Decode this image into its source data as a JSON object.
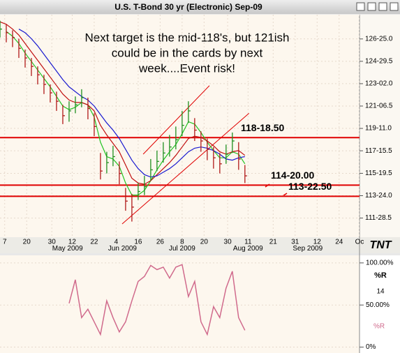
{
  "logo": "TNT",
  "chart_data": [
    {
      "type": "ohlc",
      "title": "U.S. T-Bond 30 yr (Electronic) Sep-09",
      "annotation": [
        "Next target is the mid-118's, but 121ish",
        "could be in the cards by next",
        "week....Event risk!"
      ],
      "x": [
        0,
        2,
        4,
        6,
        8,
        10,
        12,
        14,
        16,
        18,
        20,
        22,
        24,
        26,
        28,
        30,
        32,
        34,
        36,
        38,
        40,
        42,
        44,
        46,
        48,
        50,
        52,
        54,
        56,
        58,
        60,
        62,
        64,
        66,
        68,
        70,
        72,
        74,
        76,
        78
      ],
      "high": [
        128.3,
        128.0,
        127.5,
        126.8,
        125.9,
        125.2,
        124.5,
        123.8,
        123.0,
        122.4,
        121.3,
        121.6,
        122.0,
        122.6,
        121.9,
        120.6,
        117.3,
        117.4,
        117.9,
        116.6,
        114.4,
        113.9,
        114.8,
        115.4,
        116.8,
        117.5,
        118.2,
        118.8,
        119.5,
        120.8,
        121.6,
        120.2,
        119.1,
        118.5,
        117.8,
        117.3,
        118.0,
        119.0,
        118.2,
        116.3
      ],
      "low": [
        126.9,
        126.5,
        126.1,
        125.2,
        124.4,
        123.7,
        123.0,
        122.2,
        121.5,
        120.8,
        119.7,
        119.9,
        120.6,
        121.1,
        120.1,
        118.7,
        115.1,
        115.6,
        116.2,
        114.7,
        112.5,
        111.6,
        113.4,
        113.8,
        115.0,
        115.8,
        116.5,
        117.0,
        117.6,
        118.7,
        119.8,
        118.3,
        117.4,
        116.7,
        116.0,
        115.6,
        116.4,
        117.3,
        115.9,
        114.8
      ],
      "close": [
        127.6,
        127.3,
        126.9,
        126.0,
        125.2,
        124.5,
        123.8,
        123.0,
        122.3,
        121.6,
        120.4,
        120.8,
        121.3,
        121.9,
        121.0,
        119.5,
        115.8,
        116.5,
        117.0,
        115.6,
        113.3,
        112.8,
        114.1,
        114.5,
        115.9,
        116.6,
        117.3,
        117.8,
        118.4,
        119.6,
        120.8,
        119.2,
        118.3,
        117.6,
        116.9,
        116.4,
        117.2,
        118.3,
        116.8,
        115.4
      ],
      "up_color": "#1f8f1f",
      "down_color": "#b01818",
      "moving_averages": [
        {
          "color": "#22c422",
          "values": [
            null,
            127.4,
            127.0,
            126.4,
            125.6,
            124.9,
            124.2,
            123.5,
            122.8,
            122.0,
            121.2,
            120.9,
            121.1,
            121.5,
            121.3,
            120.3,
            118.2,
            117.0,
            116.8,
            116.2,
            114.8,
            113.8,
            113.8,
            114.2,
            115.0,
            115.9,
            116.7,
            117.4,
            118.0,
            118.9,
            119.9,
            119.7,
            119.0,
            118.2,
            117.5,
            116.9,
            116.9,
            117.4,
            117.2,
            116.4
          ]
        },
        {
          "color": "#c01010",
          "values": [
            128.2,
            128.0,
            127.6,
            127.1,
            126.4,
            125.7,
            125.0,
            124.3,
            123.6,
            122.9,
            122.2,
            121.7,
            121.5,
            121.5,
            121.3,
            120.8,
            119.6,
            118.8,
            118.1,
            117.4,
            116.3,
            115.2,
            114.8,
            114.7,
            115.0,
            115.5,
            116.0,
            116.5,
            117.1,
            117.8,
            118.5,
            118.7,
            118.6,
            118.3,
            117.9,
            117.4,
            117.2,
            117.4,
            117.5,
            117.1
          ]
        },
        {
          "color": "#1a1ad0",
          "values": [
            null,
            null,
            null,
            127.6,
            127.3,
            126.8,
            126.2,
            125.5,
            124.8,
            124.1,
            123.4,
            122.8,
            122.4,
            122.0,
            121.7,
            121.2,
            120.5,
            119.8,
            119.2,
            118.5,
            117.6,
            116.7,
            116.0,
            115.5,
            115.3,
            115.4,
            115.7,
            116.0,
            116.4,
            116.9,
            117.4,
            117.7,
            117.8,
            117.7,
            117.5,
            117.2,
            116.8,
            116.7,
            116.9,
            117.0
          ]
        }
      ],
      "levels": [
        {
          "value": 118.578125,
          "label": "118-18.50"
        },
        {
          "value": 114.625,
          "label": "114-20.00"
        },
        {
          "value": 113.703125,
          "label": "113-22.50"
        }
      ],
      "level_color": "#e00000",
      "trendlines": [
        {
          "x": [
            38.9,
            79.3
          ],
          "y": [
            111.4,
            120.6
          ]
        },
        {
          "x": [
            45.6,
            66.7
          ],
          "y": [
            117.2,
            122.9
          ]
        }
      ],
      "trend_color": "#e00000",
      "xlim": [
        0,
        114.5
      ],
      "ylim": [
        110.3,
        128.8
      ],
      "yticks": [
        {
          "value": 126.78125,
          "label": "126-25.0"
        },
        {
          "value": 124.921875,
          "label": "124-29.5"
        },
        {
          "value": 123.0625,
          "label": "123-02.0"
        },
        {
          "value": 121.203125,
          "label": "121-06.5"
        },
        {
          "value": 119.34375,
          "label": "119-11.0"
        },
        {
          "value": 117.484375,
          "label": "117-15.5"
        },
        {
          "value": 115.609375,
          "label": "115-19.5"
        },
        {
          "value": 113.75,
          "label": "113-24.0"
        },
        {
          "value": 111.890625,
          "label": "111-28.5"
        }
      ],
      "xticks": [
        {
          "value": 1.5,
          "label": "7"
        },
        {
          "value": 8.5,
          "label": "20"
        },
        {
          "value": 16.5,
          "label": "30"
        },
        {
          "value": 23,
          "label": "12"
        },
        {
          "value": 30,
          "label": "22"
        },
        {
          "value": 37,
          "label": "4"
        },
        {
          "value": 44,
          "label": "16"
        },
        {
          "value": 51,
          "label": "26"
        },
        {
          "value": 58,
          "label": "8"
        },
        {
          "value": 65,
          "label": "20"
        },
        {
          "value": 72.5,
          "label": "30"
        },
        {
          "value": 79,
          "label": "11"
        },
        {
          "value": 87,
          "label": "21"
        },
        {
          "value": 94,
          "label": "31"
        },
        {
          "value": 101,
          "label": "12"
        },
        {
          "value": 108,
          "label": "24"
        },
        {
          "value": 114.5,
          "label": "Oc"
        }
      ],
      "month_ticks": [
        {
          "value": 21.5,
          "label": "May 2009"
        },
        {
          "value": 39,
          "label": "Jun 2009"
        },
        {
          "value": 58,
          "label": "Jul 2009"
        },
        {
          "value": 79,
          "label": "Aug 2009"
        },
        {
          "value": 98,
          "label": "Sep 2009"
        }
      ],
      "grid": true
    },
    {
      "type": "line",
      "title": "%R",
      "period": 14,
      "x": [
        0,
        2,
        4,
        6,
        8,
        10,
        12,
        14,
        16,
        18,
        20,
        22,
        24,
        26,
        28,
        30,
        32,
        34,
        36,
        38,
        40,
        42,
        44,
        46,
        48,
        50,
        52,
        54,
        56,
        58,
        60,
        62,
        64,
        66,
        68,
        70,
        72,
        74,
        76,
        78
      ],
      "series": [
        {
          "name": "%R",
          "color": "#d06a8c",
          "values": [
            null,
            null,
            null,
            null,
            null,
            null,
            null,
            null,
            null,
            null,
            null,
            52,
            80,
            35,
            45,
            30,
            15,
            55,
            35,
            18,
            30,
            55,
            78,
            84,
            97,
            92,
            95,
            82,
            95,
            98,
            60,
            78,
            30,
            15,
            48,
            35,
            70,
            90,
            35,
            20
          ]
        }
      ],
      "xlim": [
        0,
        114.5
      ],
      "ylim": [
        -7,
        109
      ],
      "yticks": [
        {
          "value": 100,
          "label": "100.00%"
        },
        {
          "value": 50,
          "label": "50.00%"
        },
        {
          "value": 0,
          "label": "0%"
        }
      ],
      "grid": true
    }
  ]
}
